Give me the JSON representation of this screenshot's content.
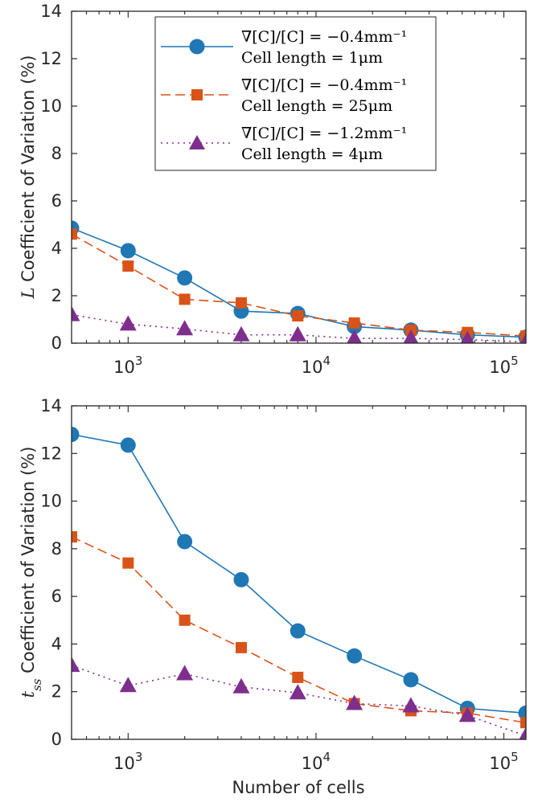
{
  "chart_data": [
    {
      "type": "line",
      "id": "top",
      "x_scale": "log",
      "xlim": [
        500,
        131072
      ],
      "ylim": [
        0,
        14
      ],
      "yticks": [
        0,
        2,
        4,
        6,
        8,
        10,
        12,
        14
      ],
      "xticks": [
        {
          "value": 1000,
          "base": "10",
          "exp": "3"
        },
        {
          "value": 10000,
          "base": "10",
          "exp": "4"
        },
        {
          "value": 100000,
          "base": "10",
          "exp": "5"
        }
      ],
      "xlabel": "",
      "ylabel": "Coefficient of Variation (%)",
      "ylabel_var": "L",
      "ylabel_sub": "",
      "x": [
        500,
        1000,
        2000,
        4000,
        8000,
        16000,
        32000,
        64000,
        131072
      ],
      "series": [
        {
          "name": "gradient -0.4, cell length 1",
          "values": [
            4.85,
            3.9,
            2.75,
            1.35,
            1.25,
            0.7,
            0.55,
            0.35,
            0.25
          ]
        },
        {
          "name": "gradient -0.4, cell length 25",
          "values": [
            4.6,
            3.25,
            1.85,
            1.7,
            1.15,
            0.85,
            0.55,
            0.45,
            0.3
          ]
        },
        {
          "name": "gradient -1.2, cell length 4",
          "values": [
            1.2,
            0.8,
            0.6,
            0.35,
            0.35,
            0.2,
            0.2,
            0.15,
            0.05
          ]
        }
      ],
      "legend": [
        {
          "line1": "∇[C]/[C] = −0.4mm⁻¹",
          "line2": "Cell length = 1μm"
        },
        {
          "line1": "∇[C]/[C] = −0.4mm⁻¹",
          "line2": "Cell length = 25μm"
        },
        {
          "line1": "∇[C]/[C] = −1.2mm⁻¹",
          "line2": "Cell length = 4μm"
        }
      ],
      "legend_position": "top-right"
    },
    {
      "type": "line",
      "id": "bottom",
      "x_scale": "log",
      "xlim": [
        500,
        131072
      ],
      "ylim": [
        0,
        14
      ],
      "yticks": [
        0,
        2,
        4,
        6,
        8,
        10,
        12,
        14
      ],
      "xticks": [
        {
          "value": 1000,
          "base": "10",
          "exp": "3"
        },
        {
          "value": 10000,
          "base": "10",
          "exp": "4"
        },
        {
          "value": 100000,
          "base": "10",
          "exp": "5"
        }
      ],
      "xlabel": "Number of cells",
      "ylabel": "Coefficient of Variation (%)",
      "ylabel_var": "t",
      "ylabel_sub": "ss",
      "x": [
        500,
        1000,
        2000,
        4000,
        8000,
        16000,
        32000,
        64000,
        131072
      ],
      "series": [
        {
          "name": "gradient -0.4, cell length 1",
          "values": [
            12.8,
            12.35,
            8.3,
            6.7,
            4.55,
            3.5,
            2.5,
            1.3,
            1.1
          ]
        },
        {
          "name": "gradient -0.4, cell length 25",
          "values": [
            8.5,
            7.4,
            5.0,
            3.85,
            2.6,
            1.5,
            1.2,
            1.1,
            0.7
          ]
        },
        {
          "name": "gradient -1.2, cell length 4",
          "values": [
            3.1,
            2.25,
            2.75,
            2.2,
            1.95,
            1.5,
            1.4,
            1.0,
            0.15
          ]
        }
      ]
    }
  ],
  "style": {
    "series_colors": [
      "#1f77b4",
      "#d95319",
      "#7e2f8e"
    ],
    "axis_color": "#262626"
  }
}
